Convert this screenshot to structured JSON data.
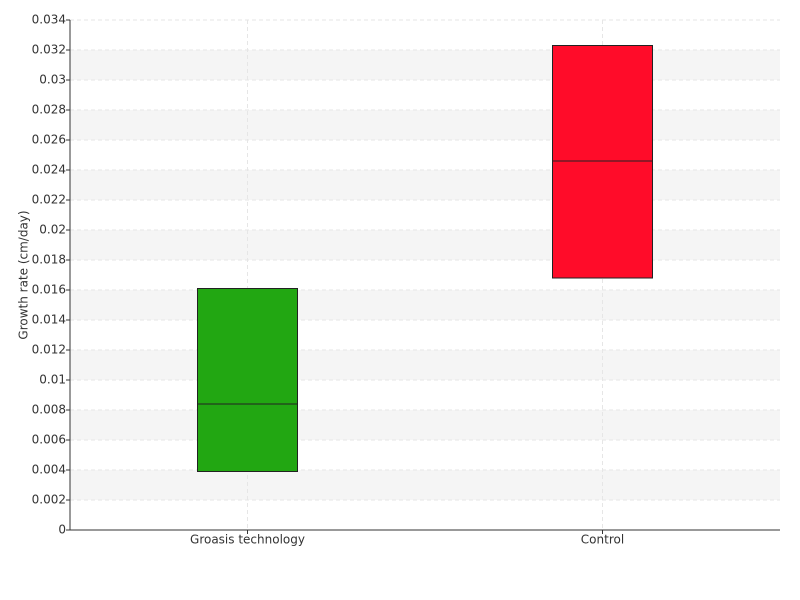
{
  "chart_data": {
    "type": "box",
    "y_label": "Growth rate (cm/day)",
    "categories": [
      "Groasis technology",
      "Control"
    ],
    "low": [
      0.0039,
      0.0168
    ],
    "median": [
      0.0084,
      0.0246
    ],
    "high": [
      0.0161,
      0.0323
    ],
    "colors": [
      "#22a712",
      "#ff0c29"
    ],
    "ylim": [
      0,
      0.034
    ],
    "yticks": [
      0,
      0.002,
      0.004,
      0.006,
      0.008,
      0.01,
      0.012,
      0.014,
      0.016,
      0.018,
      0.02,
      0.022,
      0.024,
      0.026,
      0.028,
      0.03,
      0.032,
      0.034
    ],
    "grid": true
  }
}
